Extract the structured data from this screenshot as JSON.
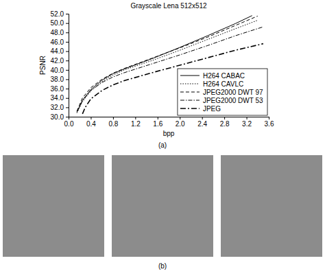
{
  "chart_data": {
    "type": "line",
    "title": "Grayscale Lena 512x512",
    "x_label": "bpp",
    "y_label": "PSNR",
    "annotations": [
      "(a)",
      "(b)"
    ],
    "xlim": [
      0,
      3.6
    ],
    "xticks": [
      {
        "value": 0,
        "label": "0.0"
      },
      0.4,
      0.8,
      1.2,
      1.6,
      {
        "value": 2,
        "label": "2.0"
      },
      2.4,
      2.8,
      3.2,
      3.6
    ],
    "ylim": [
      30,
      52
    ],
    "yticks": [
      {
        "value": 30,
        "label": "30.0"
      },
      {
        "value": 32,
        "label": "32.0"
      },
      {
        "value": 34,
        "label": "34.0"
      },
      {
        "value": 36,
        "label": "36.0"
      },
      {
        "value": 38,
        "label": "38.0"
      },
      {
        "value": 40,
        "label": "40.0"
      },
      {
        "value": 42,
        "label": "42.0"
      },
      {
        "value": 44,
        "label": "44.0"
      },
      {
        "value": 46,
        "label": "46.0"
      },
      {
        "value": 48,
        "label": "48.0"
      },
      {
        "value": 50,
        "label": "50.0"
      },
      {
        "value": 52,
        "label": "52.0"
      }
    ],
    "grid": false,
    "legend": "lower right",
    "series": [
      {
        "name": "H264 CABAC",
        "color": "#000000",
        "line_style": "solid",
        "x": [
          0.15,
          0.25,
          0.4,
          0.6,
          0.8,
          1.0,
          1.5,
          2.0,
          2.5,
          3.0,
          3.3
        ],
        "values": [
          31.0,
          33.5,
          35.8,
          37.8,
          39.2,
          40.2,
          42.4,
          44.8,
          47.3,
          49.9,
          51.6
        ]
      },
      {
        "name": "H264 CAVLC",
        "color": "#000000",
        "line_style": "dotted",
        "x": [
          0.15,
          0.25,
          0.4,
          0.6,
          0.8,
          1.0,
          1.5,
          2.0,
          2.5,
          3.0,
          3.4
        ],
        "values": [
          30.8,
          33.2,
          35.5,
          37.5,
          38.9,
          40.0,
          42.0,
          44.2,
          46.5,
          48.8,
          50.6
        ]
      },
      {
        "name": "JPEG2000 DWT 97",
        "color": "#000000",
        "line_style": "dashed",
        "x": [
          0.15,
          0.25,
          0.4,
          0.6,
          0.8,
          1.0,
          1.5,
          2.0,
          2.5,
          3.0,
          3.4
        ],
        "values": [
          31.2,
          34.0,
          36.2,
          38.0,
          39.3,
          40.3,
          42.5,
          44.7,
          47.0,
          49.5,
          51.5
        ]
      },
      {
        "name": "JPEG2000 DWT 53",
        "color": "#000000",
        "line_style": "dash-dot",
        "x": [
          0.15,
          0.25,
          0.4,
          0.6,
          0.8,
          1.0,
          1.5,
          2.0,
          2.5,
          3.0,
          3.5
        ],
        "values": [
          31.0,
          33.5,
          35.6,
          37.3,
          38.5,
          39.4,
          41.3,
          43.2,
          45.2,
          47.3,
          49.2
        ]
      },
      {
        "name": "JPEG",
        "color": "#000000",
        "line_style": "long-dash-dot",
        "x": [
          0.25,
          0.3,
          0.4,
          0.6,
          0.8,
          1.0,
          1.5,
          2.0,
          2.5,
          3.0,
          3.5
        ],
        "values": [
          30.6,
          32.0,
          33.8,
          35.6,
          36.8,
          37.7,
          39.4,
          41.0,
          42.6,
          44.2,
          45.6
        ]
      }
    ]
  }
}
